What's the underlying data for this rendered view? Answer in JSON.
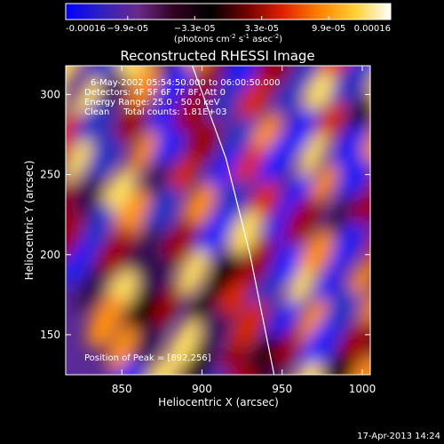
{
  "chart_data": {
    "type": "heatmap",
    "title": "Reconstructed RHESSI Image",
    "xlabel": "Heliocentric X (arcsec)",
    "ylabel": "Heliocentric Y (arcsec)",
    "xlim": [
      815,
      1005
    ],
    "ylim": [
      125,
      318
    ],
    "x_ticks": [
      850,
      900,
      950,
      1000
    ],
    "y_ticks": [
      150,
      200,
      250,
      300
    ],
    "x_tick_labels": [
      "850",
      "900",
      "950",
      "1000"
    ],
    "y_tick_labels": [
      "150",
      "200",
      "250",
      "300"
    ],
    "colorbar": {
      "min": -0.00016,
      "max": 0.00016,
      "tick_values": [
        -0.00016,
        -9.9e-05,
        -3.3e-05,
        3.3e-05,
        9.9e-05,
        0.00016
      ],
      "tick_labels": [
        "-0.00016",
        "−9.9e-05",
        "−3.3e-05",
        "3.3e-05",
        "9.9e-05",
        "0.00016"
      ],
      "units_prefix": "(photons cm",
      "units_sup1": "-2",
      "units_mid1": " s",
      "units_sup2": "-1",
      "units_mid2": " asec",
      "units_sup3": "-2",
      "units_suffix": ")",
      "colors": [
        "#0000ff",
        "#3020c0",
        "#6a2a8a",
        "#300020",
        "#000000",
        "#700000",
        "#e02000",
        "#ff8000",
        "#ffd030",
        "#ffffff"
      ]
    },
    "annotations": {
      "time": "6-May-2002 05:54:50.000 to 06:00:50.000",
      "detectors": "Detectors: 4F 5F 6F 7F 8F, Att 0",
      "energy": "Energy Range: 25.0 - 50.0 keV",
      "clean": "Clean     Total counts: 1.81E+03",
      "peak": "Position of Peak = [892,256]"
    },
    "peak_position": [
      892,
      256
    ],
    "limb_curve": [
      [
        894,
        318
      ],
      [
        915,
        260
      ],
      [
        930,
        200
      ],
      [
        945,
        125
      ]
    ]
  },
  "footer": {
    "timestamp": "17-Apr-2013 14:24"
  }
}
